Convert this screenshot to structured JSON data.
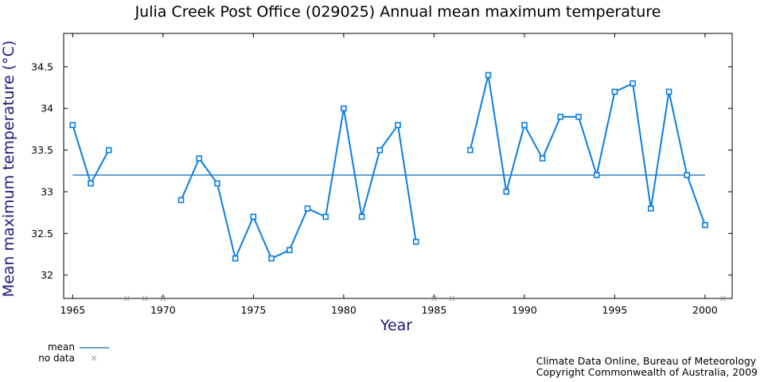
{
  "title": "Julia Creek Post Office (029025) Annual mean maximum temperature",
  "credit": {
    "line1": "Climate Data Online, Bureau of Meteorology",
    "line2": "Copyright Commonwealth of Australia, 2009"
  },
  "legend": {
    "mean_label": "mean",
    "nodata_label": "no data"
  },
  "colors": {
    "series": "#0a7ee0",
    "mean": "#0a6ab8",
    "nodata": "#999999",
    "axis_label": "#1a1a7a"
  },
  "chart_data": {
    "type": "line",
    "title": "Julia Creek Post Office (029025) Annual mean maximum temperature",
    "xlabel": "Year",
    "ylabel": "Mean maximum temperature (°C)",
    "xlim": [
      1964.5,
      2001.5
    ],
    "ylim": [
      31.72,
      34.9
    ],
    "x_ticks": [
      1965,
      1970,
      1975,
      1980,
      1985,
      1990,
      1995,
      2000
    ],
    "y_ticks": [
      32,
      32.5,
      33,
      33.5,
      34,
      34.5
    ],
    "y_tick_labels": [
      "32",
      "32.5",
      "33",
      "33.5",
      "34",
      "34.5"
    ],
    "mean": 33.2,
    "series": [
      {
        "values": [
          {
            "x": 1965,
            "y": 33.8
          },
          {
            "x": 1966,
            "y": 33.1
          },
          {
            "x": 1967,
            "y": 33.5
          },
          {
            "x": 1968,
            "y": null
          },
          {
            "x": 1969,
            "y": null
          },
          {
            "x": 1970,
            "y": null
          },
          {
            "x": 1971,
            "y": 32.9
          },
          {
            "x": 1972,
            "y": 33.4
          },
          {
            "x": 1973,
            "y": 33.1
          },
          {
            "x": 1974,
            "y": 32.2
          },
          {
            "x": 1975,
            "y": 32.7
          },
          {
            "x": 1976,
            "y": 32.2
          },
          {
            "x": 1977,
            "y": 32.3
          },
          {
            "x": 1978,
            "y": 32.8
          },
          {
            "x": 1979,
            "y": 32.7
          },
          {
            "x": 1980,
            "y": 34.0
          },
          {
            "x": 1981,
            "y": 32.7
          },
          {
            "x": 1982,
            "y": 33.5
          },
          {
            "x": 1983,
            "y": 33.8
          },
          {
            "x": 1984,
            "y": 32.4
          },
          {
            "x": 1985,
            "y": null
          },
          {
            "x": 1986,
            "y": null
          },
          {
            "x": 1987,
            "y": 33.5
          },
          {
            "x": 1988,
            "y": 34.4
          },
          {
            "x": 1989,
            "y": 33.0
          },
          {
            "x": 1990,
            "y": 33.8
          },
          {
            "x": 1991,
            "y": 33.4
          },
          {
            "x": 1992,
            "y": 33.9
          },
          {
            "x": 1993,
            "y": 33.9
          },
          {
            "x": 1994,
            "y": 33.2
          },
          {
            "x": 1995,
            "y": 34.2
          },
          {
            "x": 1996,
            "y": 34.3
          },
          {
            "x": 1997,
            "y": 32.8
          },
          {
            "x": 1998,
            "y": 34.2
          },
          {
            "x": 1999,
            "y": 33.2
          },
          {
            "x": 2000,
            "y": 32.6
          },
          {
            "x": 2001,
            "y": null
          }
        ]
      }
    ],
    "grid": false,
    "legend_position": "bottom-left"
  }
}
